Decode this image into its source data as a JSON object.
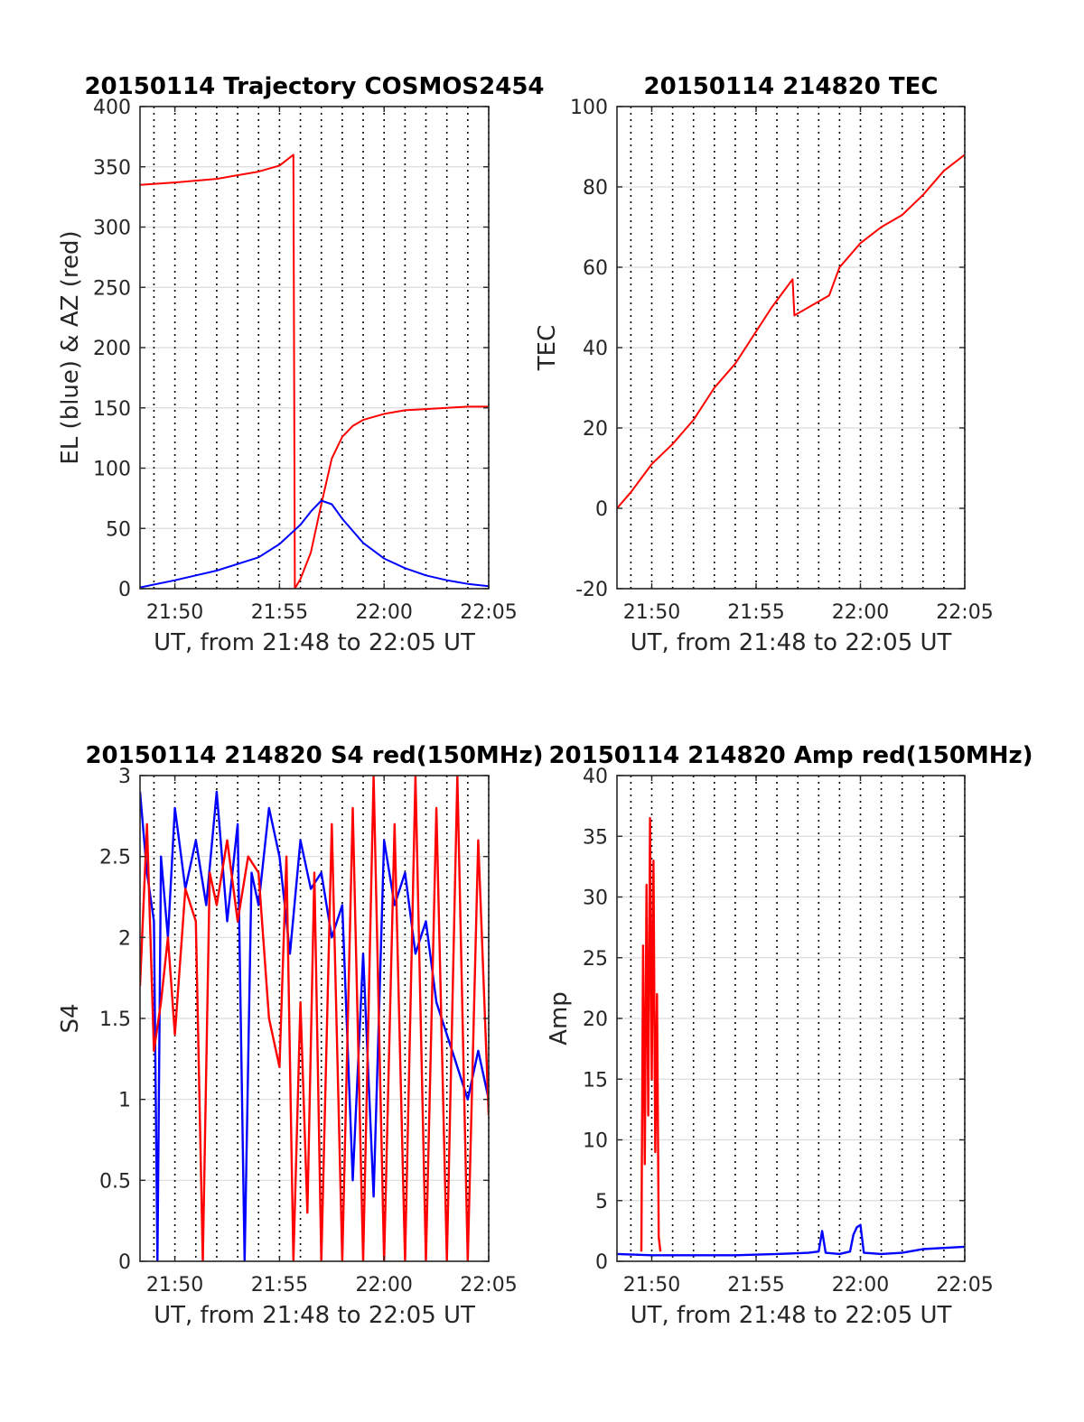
{
  "figure": {
    "colors": {
      "red": "#ff0000",
      "blue": "#0000ff",
      "grid": "#dcdcdc",
      "axis": "#262626"
    }
  },
  "chart_data": [
    {
      "type": "line",
      "title": "20150114 Trajectory COSMOS2454",
      "xlabel": "UT, from 21:48 to 22:05 UT",
      "ylabel": "EL (blue) & AZ (red)",
      "xlim": [
        "21:48:20",
        "22:05:00"
      ],
      "ylim": [
        0,
        400
      ],
      "xticks": [
        "21:50",
        "21:55",
        "22:00",
        "22:05"
      ],
      "yticks": [
        0,
        50,
        100,
        150,
        200,
        250,
        300,
        350,
        400
      ],
      "grid": {
        "horizontal": "solid",
        "vertical": "dotted every minute"
      },
      "series": [
        {
          "color": "#ff0000",
          "x": [
            "21:48:20",
            "21:50:00",
            "21:52:00",
            "21:54:00",
            "21:55:00",
            "21:55:40",
            "21:55:44",
            "21:56:00",
            "21:56:30",
            "21:57:00",
            "21:57:30",
            "21:58:00",
            "21:58:30",
            "21:59:00",
            "22:00:00",
            "22:01:00",
            "22:02:00",
            "22:03:00",
            "22:04:00",
            "22:05:00"
          ],
          "values": [
            335,
            337,
            340,
            346,
            351,
            360,
            0,
            8,
            30,
            70,
            108,
            126,
            135,
            140,
            145,
            148,
            149,
            150,
            151,
            151
          ]
        },
        {
          "color": "#0000ff",
          "x": [
            "21:48:20",
            "21:50:00",
            "21:52:00",
            "21:54:00",
            "21:55:00",
            "21:56:00",
            "21:56:30",
            "21:57:00",
            "21:57:30",
            "21:58:00",
            "21:59:00",
            "22:00:00",
            "22:01:00",
            "22:02:00",
            "22:03:00",
            "22:04:00",
            "22:05:00"
          ],
          "values": [
            1,
            7,
            15,
            26,
            37,
            53,
            64,
            73,
            70,
            58,
            38,
            25,
            17,
            11,
            7,
            4,
            2
          ]
        }
      ]
    },
    {
      "type": "line",
      "title": "20150114 214820 TEC",
      "xlabel": "UT, from 21:48 to 22:05 UT",
      "ylabel": "TEC",
      "xlim": [
        "21:48:20",
        "22:05:00"
      ],
      "ylim": [
        -20,
        100
      ],
      "xticks": [
        "21:50",
        "21:55",
        "22:00",
        "22:05"
      ],
      "yticks": [
        -20,
        0,
        20,
        40,
        60,
        80,
        100
      ],
      "grid": {
        "horizontal": "solid",
        "vertical": "dotted every minute"
      },
      "series": [
        {
          "color": "#ff0000",
          "x": [
            "21:48:20",
            "21:49:00",
            "21:50:00",
            "21:51:00",
            "21:52:00",
            "21:53:00",
            "21:54:00",
            "21:55:00",
            "21:55:45",
            "21:56:45",
            "21:56:50",
            "21:57:30",
            "21:58:30",
            "21:59:00",
            "22:00:00",
            "22:01:00",
            "22:02:00",
            "22:03:00",
            "22:04:00",
            "22:05:00"
          ],
          "values": [
            0,
            4,
            11,
            16,
            22,
            30,
            36,
            44,
            50,
            57,
            48,
            50,
            53,
            60,
            66,
            70,
            73,
            78,
            84,
            88
          ]
        }
      ]
    },
    {
      "type": "line",
      "title": "20150114 214820 S4 red(150MHz)",
      "xlabel": "UT, from 21:48 to 22:05 UT",
      "ylabel": "S4",
      "xlim": [
        "21:48:20",
        "22:05:00"
      ],
      "ylim": [
        0,
        3
      ],
      "xticks": [
        "21:50",
        "21:55",
        "22:00",
        "22:05"
      ],
      "yticks": [
        0,
        0.5,
        1,
        1.5,
        2,
        2.5,
        3
      ],
      "grid": {
        "horizontal": "solid",
        "vertical": "dotted every minute"
      },
      "series": [
        {
          "color": "#0000ff",
          "x": [
            "21:48:20",
            "21:48:40",
            "21:49:00",
            "21:49:10",
            "21:49:20",
            "21:49:40",
            "21:50:00",
            "21:50:30",
            "21:51:00",
            "21:51:30",
            "21:52:00",
            "21:52:30",
            "21:53:00",
            "21:53:20",
            "21:53:40",
            "21:54:00",
            "21:54:30",
            "21:55:00",
            "21:55:30",
            "21:56:00",
            "21:56:30",
            "21:57:00",
            "21:57:30",
            "21:58:00",
            "21:58:30",
            "21:59:00",
            "21:59:30",
            "22:00:00",
            "22:00:30",
            "22:01:00",
            "22:01:30",
            "22:02:00",
            "22:02:30",
            "22:03:00",
            "22:03:30",
            "22:04:00",
            "22:04:30",
            "22:05:00"
          ],
          "values": [
            2.9,
            2.4,
            2.1,
            0,
            2.5,
            2.0,
            2.8,
            2.3,
            2.6,
            2.2,
            2.9,
            2.1,
            2.7,
            0,
            2.4,
            2.2,
            2.8,
            2.5,
            1.9,
            2.6,
            2.3,
            2.4,
            2.0,
            2.2,
            0.5,
            1.9,
            0.4,
            2.6,
            2.2,
            2.4,
            1.9,
            2.1,
            1.6,
            1.4,
            1.2,
            1.0,
            1.3,
            1.0
          ]
        },
        {
          "color": "#ff0000",
          "x": [
            "21:48:20",
            "21:48:40",
            "21:49:00",
            "21:49:20",
            "21:49:40",
            "21:50:00",
            "21:50:30",
            "21:51:00",
            "21:51:20",
            "21:51:40",
            "21:52:00",
            "21:52:30",
            "21:53:00",
            "21:53:30",
            "21:54:00",
            "21:54:30",
            "21:55:00",
            "21:55:20",
            "21:55:40",
            "21:56:00",
            "21:56:20",
            "21:56:40",
            "21:57:00",
            "21:57:30",
            "21:58:00",
            "21:58:30",
            "21:59:00",
            "21:59:30",
            "22:00:00",
            "22:00:30",
            "22:01:00",
            "22:01:30",
            "22:02:00",
            "22:02:30",
            "22:03:00",
            "22:03:30",
            "22:04:00",
            "22:04:30",
            "22:05:00"
          ],
          "values": [
            1.7,
            2.7,
            1.3,
            1.6,
            2.0,
            1.4,
            2.3,
            2.1,
            0,
            2.4,
            2.2,
            2.6,
            2.1,
            2.5,
            2.4,
            1.5,
            1.2,
            2.5,
            0,
            1.6,
            0.3,
            2.4,
            0,
            2.7,
            0,
            2.8,
            0,
            3.0,
            0,
            2.7,
            0,
            3.0,
            0,
            2.8,
            0,
            3.0,
            0,
            2.6,
            0.9
          ]
        }
      ]
    },
    {
      "type": "line",
      "title": "20150114 214820 Amp red(150MHz)",
      "xlabel": "UT, from 21:48 to 22:05 UT",
      "ylabel": "Amp",
      "xlim": [
        "21:48:20",
        "22:05:00"
      ],
      "ylim": [
        0,
        40
      ],
      "xticks": [
        "21:50",
        "21:55",
        "22:00",
        "22:05"
      ],
      "yticks": [
        0,
        5,
        10,
        15,
        20,
        25,
        30,
        35,
        40
      ],
      "grid": {
        "horizontal": "solid",
        "vertical": "dotted every minute"
      },
      "series": [
        {
          "color": "#0000ff",
          "x": [
            "21:48:20",
            "21:50:00",
            "21:52:00",
            "21:54:00",
            "21:56:00",
            "21:57:30",
            "21:58:00",
            "21:58:10",
            "21:58:20",
            "21:59:00",
            "21:59:30",
            "21:59:40",
            "21:59:50",
            "22:00:00",
            "22:00:10",
            "22:01:00",
            "22:02:00",
            "22:03:00",
            "22:04:00",
            "22:05:00"
          ],
          "values": [
            0.6,
            0.5,
            0.5,
            0.5,
            0.6,
            0.7,
            0.8,
            2.5,
            0.7,
            0.6,
            0.8,
            2.2,
            2.8,
            3.0,
            0.7,
            0.6,
            0.7,
            1.0,
            1.1,
            1.2
          ]
        },
        {
          "color": "#ff0000",
          "x": [
            "21:49:30",
            "21:49:35",
            "21:49:40",
            "21:49:45",
            "21:49:50",
            "21:49:55",
            "21:50:00",
            "21:50:05",
            "21:50:10",
            "21:50:15",
            "21:50:20",
            "21:50:25"
          ],
          "values": [
            0.8,
            26,
            8,
            31,
            12,
            36.5,
            15,
            33,
            9,
            22,
            2,
            0.8
          ]
        }
      ]
    }
  ]
}
